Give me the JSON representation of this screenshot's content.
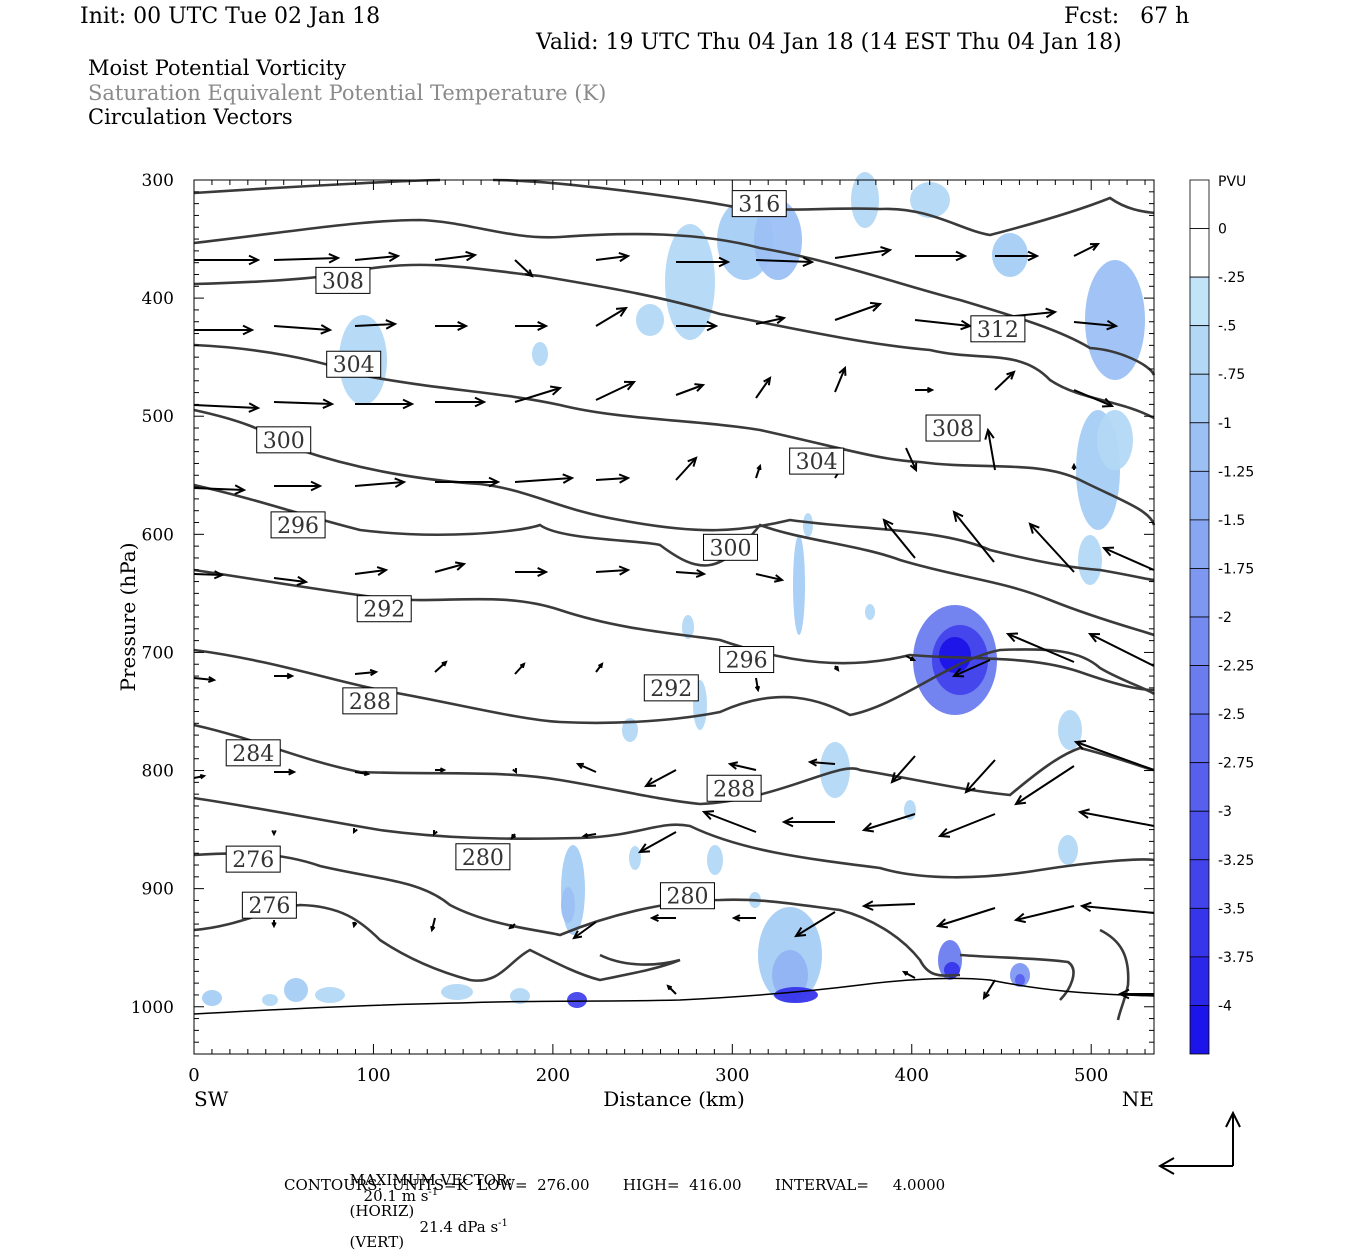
{
  "header": {
    "init": "Init: 00 UTC Tue 02 Jan 18",
    "fcst": "Fcst:   67 h",
    "valid": "Valid: 19 UTC Thu 04 Jan 18 (14 EST Thu 04 Jan 18)"
  },
  "titles": [
    {
      "text": "Moist Potential Vorticity",
      "color": "#000000"
    },
    {
      "text": "Saturation Equivalent Potential Temperature (K)",
      "color": "#8a8a8a"
    },
    {
      "text": "Circulation Vectors",
      "color": "#000000"
    }
  ],
  "chart_data": {
    "type": "cross-section",
    "xlabel": "Distance (km)",
    "ylabel": "Pressure (hPa)",
    "xlim": [
      0,
      535
    ],
    "ylim": [
      1040,
      300
    ],
    "xticks": [
      0,
      100,
      200,
      300,
      400,
      500
    ],
    "yticks": [
      300,
      400,
      500,
      600,
      700,
      800,
      900,
      1000
    ],
    "x_end_labels": {
      "left": "SW",
      "right": "NE"
    },
    "colorbar": {
      "unit": "PVU",
      "labels": [
        "0",
        "-.25",
        "-.5",
        "-.75",
        "-1",
        "-1.25",
        "-1.5",
        "-1.75",
        "-2",
        "-2.25",
        "-2.5",
        "-2.75",
        "-3",
        "-3.25",
        "-3.5",
        "-3.75",
        "-4"
      ],
      "colors": [
        "#ffffff",
        "#c2e4f8",
        "#b3d8f6",
        "#a6cdf5",
        "#9cc0f4",
        "#92b3f3",
        "#88a6f2",
        "#7e98f1",
        "#758af0",
        "#6b7cef",
        "#616eee",
        "#5760ed",
        "#4c51ec",
        "#4243eb",
        "#3735ea",
        "#2b26e9",
        "#1c14e8"
      ]
    },
    "contour_labels": [
      {
        "value": "316",
        "x": 315,
        "p": 320
      },
      {
        "value": "308",
        "x": 83,
        "p": 385
      },
      {
        "value": "312",
        "x": 448,
        "p": 426
      },
      {
        "value": "304",
        "x": 89,
        "p": 456
      },
      {
        "value": "308",
        "x": 423,
        "p": 510
      },
      {
        "value": "300",
        "x": 50,
        "p": 520
      },
      {
        "value": "304",
        "x": 347,
        "p": 538
      },
      {
        "value": "296",
        "x": 58,
        "p": 592
      },
      {
        "value": "300",
        "x": 299,
        "p": 611
      },
      {
        "value": "292",
        "x": 106,
        "p": 663
      },
      {
        "value": "296",
        "x": 308,
        "p": 706
      },
      {
        "value": "292",
        "x": 266,
        "p": 730
      },
      {
        "value": "288",
        "x": 98,
        "p": 741
      },
      {
        "value": "284",
        "x": 33,
        "p": 785
      },
      {
        "value": "288",
        "x": 301,
        "p": 815
      },
      {
        "value": "280",
        "x": 161,
        "p": 873
      },
      {
        "value": "276",
        "x": 33,
        "p": 875
      },
      {
        "value": "280",
        "x": 275,
        "p": 906
      },
      {
        "value": "276",
        "x": 42,
        "p": 914
      }
    ]
  },
  "footer": {
    "max_vector_label": "MAXIMUM VECTOR:",
    "horiz_value": "20.1 m s",
    "horiz_exp": "-1",
    "horiz_tag": "(HORIZ)",
    "vert_value": "21.4 dPa s",
    "vert_exp": "-1",
    "vert_tag": "(VERT)",
    "contours": "CONTOURS:  UNITS=K  LOW=  276.00       HIGH=  416.00       INTERVAL=     4.0000"
  }
}
